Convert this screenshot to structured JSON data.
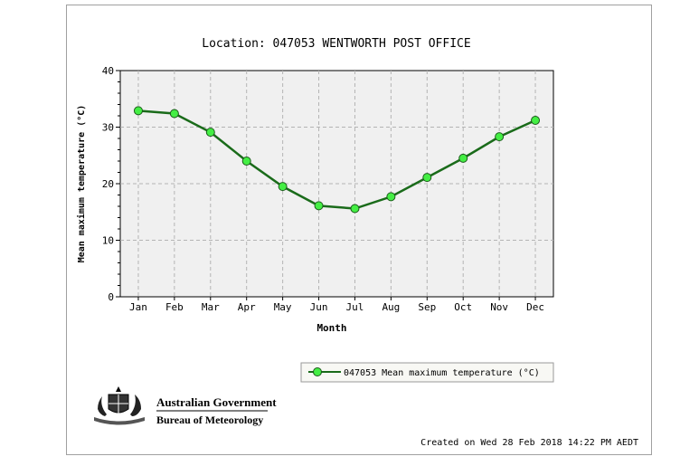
{
  "chart_data": {
    "type": "line",
    "title": "Location: 047053 WENTWORTH POST OFFICE",
    "xlabel": "Month",
    "ylabel": "Mean maximum temperature (°C)",
    "categories": [
      "Jan",
      "Feb",
      "Mar",
      "Apr",
      "May",
      "Jun",
      "Jul",
      "Aug",
      "Sep",
      "Oct",
      "Nov",
      "Dec"
    ],
    "yticks": [
      "0",
      "10",
      "20",
      "30",
      "40"
    ],
    "ylim": [
      0,
      40
    ],
    "grid": true,
    "legend_position": "bottom-right",
    "series": [
      {
        "name": "047053 Mean maximum temperature (°C)",
        "values": [
          32.9,
          32.4,
          29.1,
          24.0,
          19.5,
          16.1,
          15.6,
          17.7,
          21.1,
          24.5,
          28.3,
          31.2
        ],
        "line_color": "#1a6b1a",
        "marker_color": "#44ee44"
      }
    ]
  },
  "footer": {
    "created": "Created on Wed 28 Feb 2018 14:22 PM AEDT"
  },
  "logo": {
    "line1": "Australian Government",
    "line2": "Bureau of Meteorology"
  }
}
